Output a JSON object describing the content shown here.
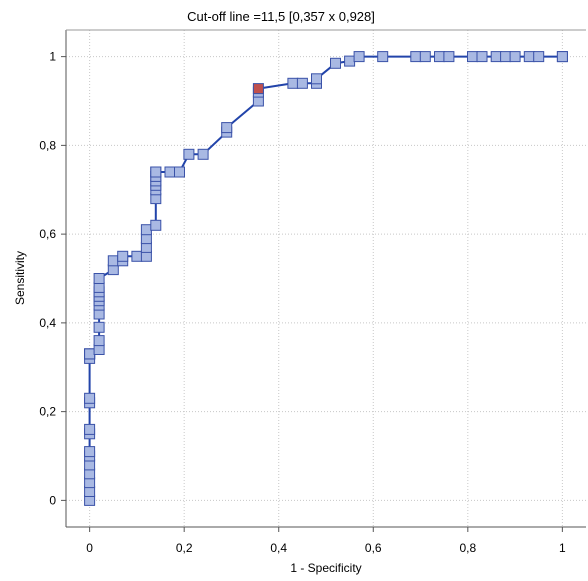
{
  "chart_data": {
    "type": "line",
    "title": "Cut-off line =11,5 [0,357 x 0,928]",
    "xlabel": "1 - Specificity",
    "ylabel": "Sensitivity",
    "xlim": [
      -0.05,
      1.05
    ],
    "ylim": [
      -0.06,
      1.06
    ],
    "x_ticks": [
      {
        "value": 0,
        "label": "0"
      },
      {
        "value": 0.2,
        "label": "0,2"
      },
      {
        "value": 0.4,
        "label": "0,4"
      },
      {
        "value": 0.6,
        "label": "0,6"
      },
      {
        "value": 0.8,
        "label": "0,8"
      },
      {
        "value": 1,
        "label": "1"
      }
    ],
    "y_ticks": [
      {
        "value": 0,
        "label": "0"
      },
      {
        "value": 0.2,
        "label": "0,2"
      },
      {
        "value": 0.4,
        "label": "0,4"
      },
      {
        "value": 0.6,
        "label": "0,6"
      },
      {
        "value": 0.8,
        "label": "0,8"
      },
      {
        "value": 1,
        "label": "1"
      }
    ],
    "grid": true,
    "colors": {
      "line": "#2244aa",
      "marker_fill": "#a9b9e3",
      "marker_stroke": "#3a52a8",
      "highlight_fill": "#c0504d",
      "grid": "#c8c8c8"
    },
    "highlight_point": {
      "x": 0.357,
      "y": 0.928
    },
    "series": [
      {
        "x": [
          0,
          0,
          0,
          0,
          0,
          0,
          0,
          0,
          0,
          0,
          0,
          0,
          0,
          0,
          0,
          0,
          0.02,
          0.02,
          0.02,
          0.02,
          0.02,
          0.02,
          0.02,
          0.02,
          0.02,
          0.02,
          0.05,
          0.05,
          0.07,
          0.07,
          0.1,
          0.12,
          0.12,
          0.12,
          0.12,
          0.14,
          0.14,
          0.14,
          0.14,
          0.14,
          0.14,
          0.14,
          0.14,
          0.17,
          0.19,
          0.21,
          0.24,
          0.29,
          0.29,
          0.357,
          0.357,
          0.357,
          0.43,
          0.45,
          0.48,
          0.48,
          0.52,
          0.55,
          0.57,
          0.62,
          0.69,
          0.71,
          0.74,
          0.76,
          0.81,
          0.83,
          0.86,
          0.88,
          0.9,
          0.93,
          0.95,
          1,
          1
        ],
        "y": [
          0,
          0.02,
          0.04,
          0.06,
          0.08,
          0.1,
          0.11,
          0.15,
          0.16,
          0.22,
          0.23,
          0.32,
          0.33,
          0.33,
          0.33,
          0.33,
          0.34,
          0.36,
          0.39,
          0.42,
          0.44,
          0.45,
          0.46,
          0.47,
          0.48,
          0.5,
          0.52,
          0.54,
          0.54,
          0.55,
          0.55,
          0.55,
          0.57,
          0.59,
          0.61,
          0.62,
          0.68,
          0.7,
          0.71,
          0.72,
          0.73,
          0.74,
          0.74,
          0.74,
          0.74,
          0.78,
          0.78,
          0.83,
          0.84,
          0.9,
          0.92,
          0.928,
          0.94,
          0.94,
          0.94,
          0.95,
          0.985,
          0.99,
          1,
          1,
          1,
          1,
          1,
          1,
          1,
          1,
          1,
          1,
          1,
          1,
          1,
          1,
          1
        ]
      }
    ]
  }
}
